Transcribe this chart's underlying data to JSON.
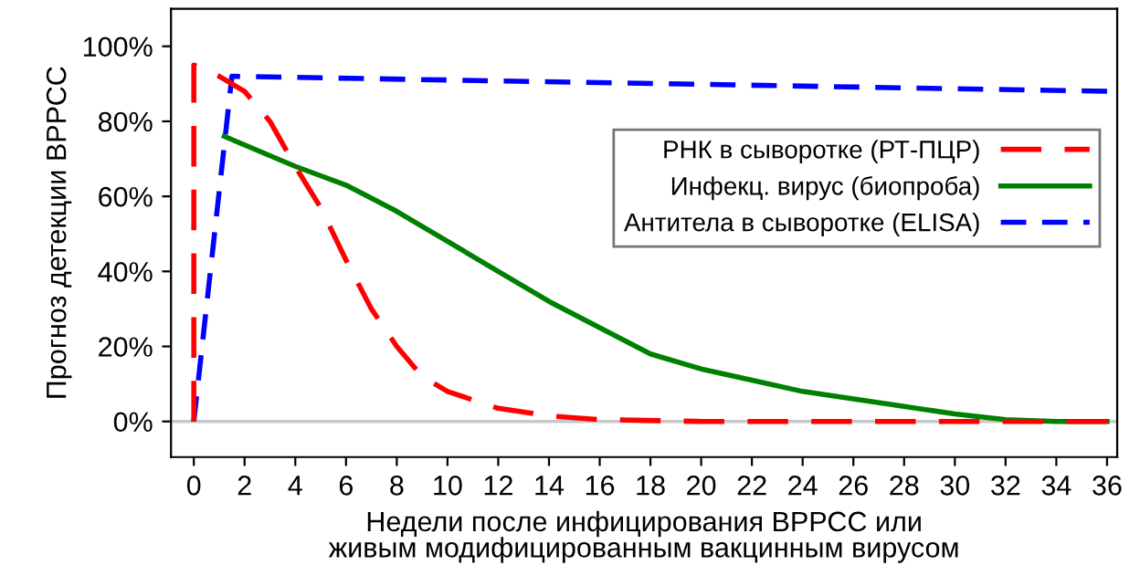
{
  "chart_data": {
    "type": "line",
    "xlabel": "Недели после инфицирования ВРРСС или\nживым модифицированным вакцинным вирусом",
    "ylabel": "Прогноз детекции ВРРСС",
    "xlim": [
      -0.9,
      36.4
    ],
    "ylim": [
      -9.5,
      110
    ],
    "xticks": [
      0,
      2,
      4,
      6,
      8,
      10,
      12,
      14,
      16,
      18,
      20,
      22,
      24,
      26,
      28,
      30,
      32,
      34,
      36
    ],
    "yticks": [
      {
        "value": 0,
        "label": "0%"
      },
      {
        "value": 20,
        "label": "20%"
      },
      {
        "value": 40,
        "label": "40%"
      },
      {
        "value": 60,
        "label": "60%"
      },
      {
        "value": 80,
        "label": "80%"
      },
      {
        "value": 100,
        "label": "100%"
      }
    ],
    "ref_lines": [
      {
        "axis": "y",
        "value": 0,
        "label": null,
        "color": "#c8c8c8",
        "line_style": "solid"
      }
    ],
    "grid": false,
    "legend": "right",
    "marker": "none",
    "series": [
      {
        "name": "РНК в сыворотке (РТ-ПЦР)",
        "color": "#ff0000",
        "line_style": "dashed",
        "x": [
          0,
          0,
          0.4,
          1,
          2,
          3,
          4,
          5,
          6,
          7,
          8,
          9,
          10,
          12,
          14,
          16,
          20,
          36
        ],
        "values": [
          0,
          95,
          94,
          92,
          88,
          80,
          68,
          57,
          43,
          30,
          20,
          12,
          8,
          3.5,
          1.5,
          0.5,
          0,
          0
        ]
      },
      {
        "name": "Инфекц. вирус (биопроба)",
        "color": "#008000",
        "line_style": "solid",
        "x": [
          1.2,
          4,
          6,
          8,
          10,
          12,
          14,
          16,
          18,
          20,
          22,
          24,
          26,
          28,
          30,
          32,
          34,
          36
        ],
        "values": [
          76,
          68,
          63,
          56,
          48,
          40,
          32,
          25,
          18,
          14,
          11,
          8,
          6,
          4,
          2,
          0.5,
          0,
          0
        ]
      },
      {
        "name": "Антитела в сыворотке (ELISA)",
        "color": "#0000ff",
        "line_style": "dotted",
        "x": [
          0,
          1.5,
          36
        ],
        "values": [
          0,
          92,
          88
        ]
      }
    ]
  }
}
